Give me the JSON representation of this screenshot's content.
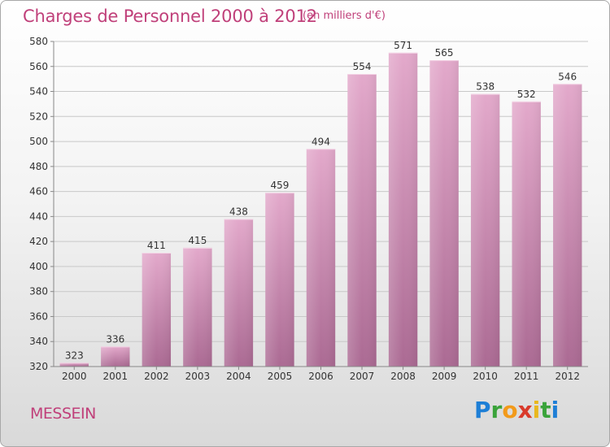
{
  "title": "Charges de Personnel 2000 à 2012",
  "subtitle": "(en milliers d'€)",
  "commune": "MESSEIN",
  "logo": [
    "P",
    "r",
    "o",
    "x",
    "i",
    "t",
    "i"
  ],
  "colors": {
    "accent": "#c0407a",
    "bar_top": "#e3a9cb",
    "bar_bottom": "#ab6a93",
    "grid": "#c8c8c8"
  },
  "chart_data": {
    "type": "bar",
    "categories": [
      "2000",
      "2001",
      "2002",
      "2003",
      "2004",
      "2005",
      "2006",
      "2007",
      "2008",
      "2009",
      "2010",
      "2011",
      "2012"
    ],
    "values": [
      323,
      336,
      411,
      415,
      438,
      459,
      494,
      554,
      571,
      565,
      538,
      532,
      546
    ],
    "title": "Charges de Personnel 2000 à 2012",
    "subtitle": "(en milliers d'€)",
    "ylim": [
      320,
      580
    ],
    "yticks": [
      320,
      340,
      360,
      380,
      400,
      420,
      440,
      460,
      480,
      500,
      520,
      540,
      560,
      580
    ],
    "grid": true
  }
}
